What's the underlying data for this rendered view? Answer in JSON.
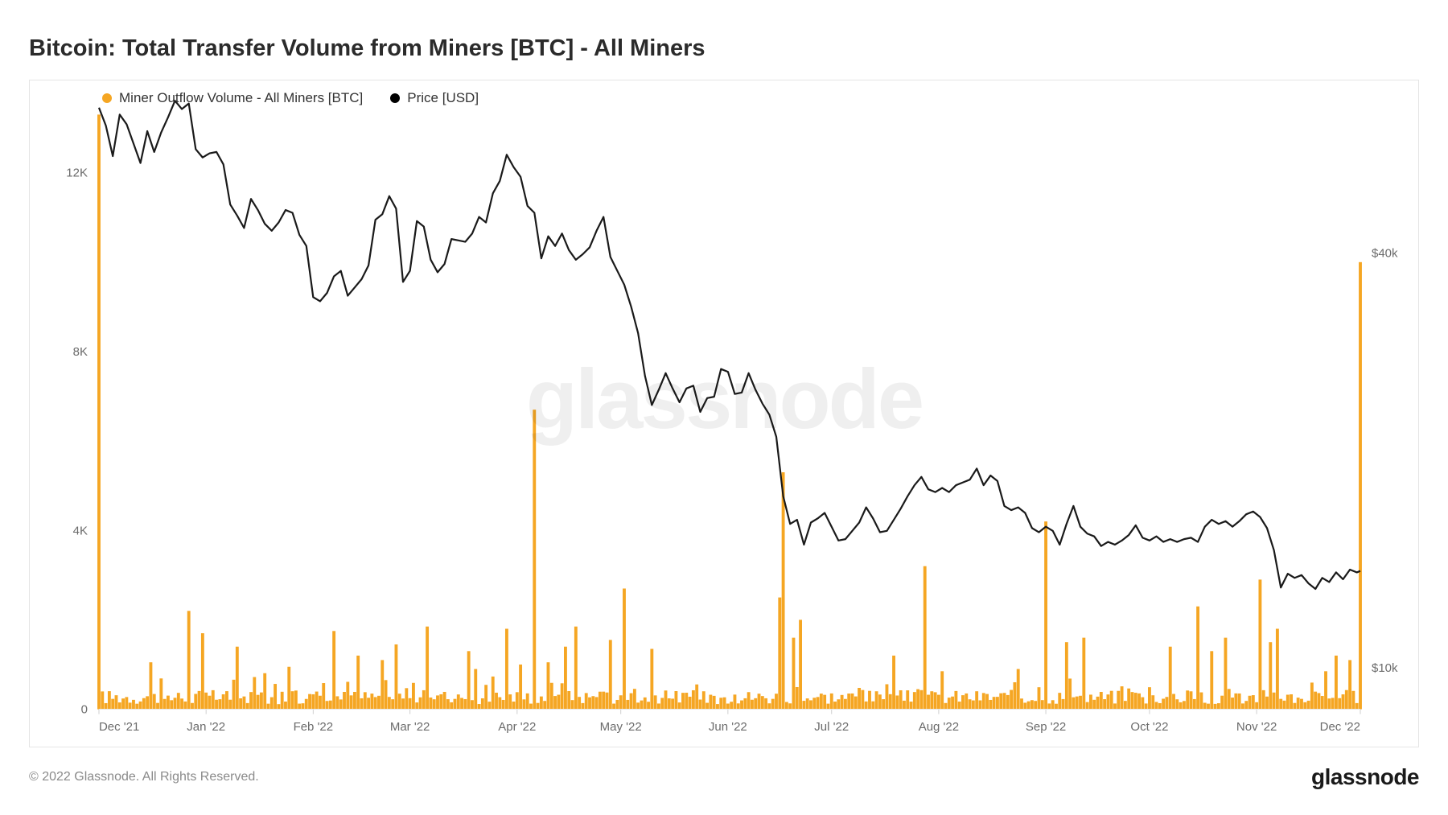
{
  "title": "Bitcoin: Total Transfer Volume from Miners [BTC] - All Miners",
  "copyright": "© 2022 Glassnode. All Rights Reserved.",
  "brand": "glassnode",
  "watermark": "glassnode",
  "legend": {
    "series1": {
      "label": "Miner Outflow Volume - All Miners [BTC]",
      "color": "#f5a623"
    },
    "series2": {
      "label": "Price [USD]",
      "color": "#000000"
    }
  },
  "chart": {
    "type": "line+bar",
    "background_color": "#ffffff",
    "border_color": "#e5e5e5",
    "xdomain": [
      0,
      365
    ],
    "xticks": [
      {
        "pos": 0,
        "label": "Dec '21"
      },
      {
        "pos": 31,
        "label": "Jan '22"
      },
      {
        "pos": 62,
        "label": "Feb '22"
      },
      {
        "pos": 90,
        "label": "Mar '22"
      },
      {
        "pos": 121,
        "label": "Apr '22"
      },
      {
        "pos": 151,
        "label": "May '22"
      },
      {
        "pos": 182,
        "label": "Jun '22"
      },
      {
        "pos": 212,
        "label": "Jul '22"
      },
      {
        "pos": 243,
        "label": "Aug '22"
      },
      {
        "pos": 274,
        "label": "Sep '22"
      },
      {
        "pos": 304,
        "label": "Oct '22"
      },
      {
        "pos": 335,
        "label": "Nov '22"
      },
      {
        "pos": 365,
        "label": "Dec '22"
      }
    ],
    "left_axis": {
      "domain": [
        0,
        13300
      ],
      "ticks": [
        0,
        4000,
        8000,
        12000
      ],
      "tick_labels": [
        "0",
        "4K",
        "8K",
        "12K"
      ],
      "color": "#6b6b6b"
    },
    "right_axis": {
      "domain": [
        7000,
        50000
      ],
      "ticks": [
        10000,
        40000
      ],
      "tick_labels": [
        "$10k",
        "$40k"
      ],
      "color": "#6b6b6b"
    },
    "price_line": {
      "color": "#1a1a1a",
      "width": 2.2,
      "points": [
        [
          0,
          50500
        ],
        [
          2,
          49200
        ],
        [
          4,
          47000
        ],
        [
          6,
          50000
        ],
        [
          8,
          49300
        ],
        [
          10,
          47900
        ],
        [
          12,
          46500
        ],
        [
          14,
          48800
        ],
        [
          16,
          47300
        ],
        [
          18,
          48700
        ],
        [
          20,
          49800
        ],
        [
          22,
          51000
        ],
        [
          24,
          50400
        ],
        [
          26,
          50800
        ],
        [
          28,
          47500
        ],
        [
          30,
          46900
        ],
        [
          32,
          47200
        ],
        [
          34,
          47300
        ],
        [
          36,
          46400
        ],
        [
          38,
          43500
        ],
        [
          40,
          42700
        ],
        [
          42,
          41800
        ],
        [
          44,
          43900
        ],
        [
          46,
          43100
        ],
        [
          48,
          42100
        ],
        [
          50,
          41600
        ],
        [
          52,
          42200
        ],
        [
          54,
          43100
        ],
        [
          56,
          42900
        ],
        [
          58,
          41300
        ],
        [
          60,
          40500
        ],
        [
          62,
          36800
        ],
        [
          64,
          36500
        ],
        [
          66,
          37100
        ],
        [
          68,
          38300
        ],
        [
          70,
          38700
        ],
        [
          72,
          36900
        ],
        [
          74,
          37500
        ],
        [
          76,
          38100
        ],
        [
          78,
          39100
        ],
        [
          80,
          42400
        ],
        [
          82,
          42800
        ],
        [
          84,
          44100
        ],
        [
          86,
          43200
        ],
        [
          88,
          37900
        ],
        [
          90,
          38700
        ],
        [
          92,
          42300
        ],
        [
          94,
          41900
        ],
        [
          96,
          39500
        ],
        [
          98,
          38600
        ],
        [
          100,
          39200
        ],
        [
          102,
          41000
        ],
        [
          104,
          40900
        ],
        [
          106,
          40800
        ],
        [
          108,
          41400
        ],
        [
          110,
          42600
        ],
        [
          112,
          42200
        ],
        [
          114,
          44300
        ],
        [
          116,
          45200
        ],
        [
          118,
          47100
        ],
        [
          120,
          46200
        ],
        [
          122,
          45500
        ],
        [
          124,
          43400
        ],
        [
          126,
          42900
        ],
        [
          128,
          39600
        ],
        [
          130,
          41200
        ],
        [
          132,
          40500
        ],
        [
          134,
          41400
        ],
        [
          136,
          40200
        ],
        [
          138,
          39500
        ],
        [
          140,
          39900
        ],
        [
          142,
          40400
        ],
        [
          144,
          41600
        ],
        [
          146,
          42600
        ],
        [
          148,
          39700
        ],
        [
          150,
          38700
        ],
        [
          152,
          37700
        ],
        [
          154,
          36100
        ],
        [
          156,
          34200
        ],
        [
          158,
          31100
        ],
        [
          160,
          29000
        ],
        [
          162,
          30100
        ],
        [
          164,
          31300
        ],
        [
          166,
          30200
        ],
        [
          168,
          29200
        ],
        [
          170,
          30200
        ],
        [
          172,
          30400
        ],
        [
          174,
          28500
        ],
        [
          176,
          29500
        ],
        [
          178,
          29600
        ],
        [
          180,
          31600
        ],
        [
          182,
          31400
        ],
        [
          184,
          29800
        ],
        [
          186,
          29900
        ],
        [
          188,
          31300
        ],
        [
          190,
          30100
        ],
        [
          192,
          29100
        ],
        [
          194,
          28300
        ],
        [
          196,
          26700
        ],
        [
          198,
          22400
        ],
        [
          200,
          20400
        ],
        [
          202,
          20700
        ],
        [
          204,
          18900
        ],
        [
          206,
          20500
        ],
        [
          208,
          20800
        ],
        [
          210,
          21200
        ],
        [
          212,
          20200
        ],
        [
          214,
          19200
        ],
        [
          216,
          19300
        ],
        [
          218,
          19900
        ],
        [
          220,
          20500
        ],
        [
          222,
          21600
        ],
        [
          224,
          20800
        ],
        [
          226,
          19800
        ],
        [
          228,
          19900
        ],
        [
          230,
          20700
        ],
        [
          232,
          21500
        ],
        [
          234,
          22400
        ],
        [
          236,
          23200
        ],
        [
          238,
          23800
        ],
        [
          240,
          22900
        ],
        [
          242,
          22700
        ],
        [
          244,
          23000
        ],
        [
          246,
          22700
        ],
        [
          248,
          23200
        ],
        [
          250,
          23400
        ],
        [
          252,
          23600
        ],
        [
          254,
          24400
        ],
        [
          256,
          23200
        ],
        [
          258,
          23900
        ],
        [
          260,
          23500
        ],
        [
          262,
          21700
        ],
        [
          264,
          21400
        ],
        [
          266,
          21600
        ],
        [
          268,
          21200
        ],
        [
          270,
          20100
        ],
        [
          272,
          19800
        ],
        [
          274,
          20200
        ],
        [
          276,
          19900
        ],
        [
          278,
          18900
        ],
        [
          280,
          20400
        ],
        [
          282,
          21700
        ],
        [
          284,
          20200
        ],
        [
          286,
          19700
        ],
        [
          288,
          19500
        ],
        [
          290,
          18800
        ],
        [
          292,
          19100
        ],
        [
          294,
          18900
        ],
        [
          296,
          19200
        ],
        [
          298,
          19600
        ],
        [
          300,
          20300
        ],
        [
          302,
          19400
        ],
        [
          304,
          19200
        ],
        [
          306,
          19500
        ],
        [
          308,
          19100
        ],
        [
          310,
          19300
        ],
        [
          312,
          19100
        ],
        [
          314,
          19300
        ],
        [
          316,
          19400
        ],
        [
          318,
          19100
        ],
        [
          320,
          20200
        ],
        [
          322,
          20700
        ],
        [
          324,
          20400
        ],
        [
          326,
          20600
        ],
        [
          328,
          20200
        ],
        [
          330,
          20600
        ],
        [
          332,
          21100
        ],
        [
          334,
          21300
        ],
        [
          336,
          20900
        ],
        [
          338,
          20100
        ],
        [
          340,
          18500
        ],
        [
          342,
          15800
        ],
        [
          344,
          16800
        ],
        [
          346,
          16500
        ],
        [
          348,
          16700
        ],
        [
          350,
          16100
        ],
        [
          352,
          15700
        ],
        [
          354,
          16500
        ],
        [
          356,
          16200
        ],
        [
          358,
          16900
        ],
        [
          360,
          16400
        ],
        [
          362,
          17100
        ],
        [
          364,
          16900
        ],
        [
          365,
          17000
        ]
      ]
    },
    "outflow_bars": {
      "color": "#f5a623",
      "noise_base": 380,
      "noise_amp": 320,
      "spikes": [
        [
          0,
          13300
        ],
        [
          15,
          1050
        ],
        [
          26,
          2200
        ],
        [
          30,
          1700
        ],
        [
          40,
          1400
        ],
        [
          55,
          950
        ],
        [
          68,
          1750
        ],
        [
          75,
          1200
        ],
        [
          82,
          1100
        ],
        [
          86,
          1450
        ],
        [
          95,
          1850
        ],
        [
          107,
          1300
        ],
        [
          109,
          900
        ],
        [
          118,
          1800
        ],
        [
          122,
          1000
        ],
        [
          126,
          6700
        ],
        [
          130,
          1050
        ],
        [
          135,
          1400
        ],
        [
          138,
          1850
        ],
        [
          148,
          1550
        ],
        [
          152,
          2700
        ],
        [
          160,
          1350
        ],
        [
          197,
          2500
        ],
        [
          198,
          5300
        ],
        [
          201,
          1600
        ],
        [
          203,
          2000
        ],
        [
          230,
          1200
        ],
        [
          239,
          3200
        ],
        [
          244,
          850
        ],
        [
          266,
          900
        ],
        [
          274,
          4200
        ],
        [
          280,
          1500
        ],
        [
          285,
          1600
        ],
        [
          310,
          1400
        ],
        [
          318,
          2300
        ],
        [
          322,
          1300
        ],
        [
          326,
          1600
        ],
        [
          336,
          2900
        ],
        [
          339,
          1500
        ],
        [
          341,
          1800
        ],
        [
          355,
          850
        ],
        [
          358,
          1200
        ],
        [
          362,
          1100
        ],
        [
          365,
          10000
        ]
      ]
    }
  }
}
